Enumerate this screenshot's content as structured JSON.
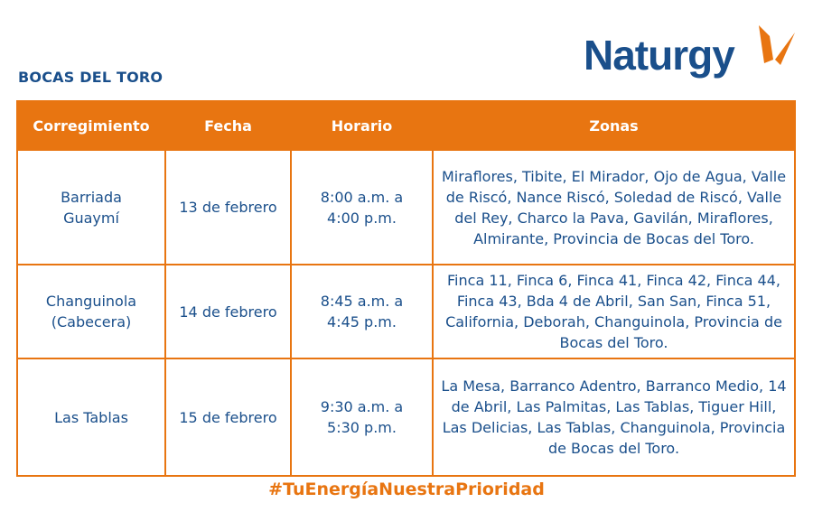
{
  "region_title": "BOCAS DEL TORO",
  "logo": {
    "text": "Naturgy",
    "brand_blue": "#1a4f8b",
    "brand_orange": "#e87511"
  },
  "table": {
    "headers": [
      "Corregimiento",
      "Fecha",
      "Horario",
      "Zonas"
    ],
    "rows": [
      {
        "corregimiento": "Barriada Guaymí",
        "fecha": "13 de febrero",
        "horario": "8:00 a.m. a 4:00 p.m.",
        "zonas": "Miraflores, Tibite, El Mirador, Ojo de Agua, Valle de Riscó, Nance Riscó, Soledad de Riscó, Valle del Rey, Charco la Pava, Gavilán, Miraflores, Almirante, Provincia de Bocas del Toro."
      },
      {
        "corregimiento": "Changuinola (Cabecera)",
        "fecha": "14 de febrero",
        "horario": "8:45 a.m. a 4:45 p.m.",
        "zonas": "Finca 11, Finca 6, Finca 41, Finca 42, Finca 44, Finca 43, Bda 4 de Abril, San San, Finca 51, California, Deborah, Changuinola, Provincia de Bocas del Toro."
      },
      {
        "corregimiento": "Las Tablas",
        "fecha": "15 de febrero",
        "horario": "9:30 a.m. a 5:30 p.m.",
        "zonas": "La Mesa, Barranco Adentro, Barranco Medio, 14 de Abril, Las Palmitas, Las Tablas, Tiguer Hill, Las Delicias, Las Tablas, Changuinola, Provincia de Bocas del Toro."
      }
    ]
  },
  "hashtag": "#TuEnergíaNuestraPrioridad"
}
